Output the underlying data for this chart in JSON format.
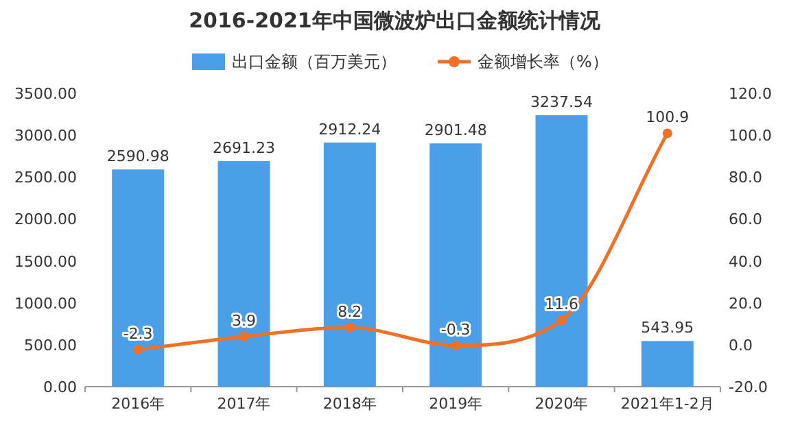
{
  "chart_data": {
    "type": "bar",
    "title": "2016-2021年中国微波炉出口金额统计情况",
    "categories": [
      "2016年",
      "2017年",
      "2018年",
      "2019年",
      "2020年",
      "2021年1-2月"
    ],
    "series": [
      {
        "name": "出口金额（百万美元）",
        "color": "#4a9fe8",
        "values": [
          2590.98,
          2691.23,
          2912.24,
          2901.48,
          3237.54,
          543.95
        ]
      },
      {
        "name": "金额增长率（%）",
        "type": "line",
        "axis": "y2",
        "color": "#f07026",
        "values": [
          -2.3,
          3.9,
          8.2,
          -0.3,
          11.6,
          100.9
        ]
      }
    ],
    "ylim": [
      0,
      3500
    ],
    "yticks": [
      {
        "value": 0,
        "label": "0.00"
      },
      {
        "value": 500,
        "label": "500.00"
      },
      {
        "value": 1000,
        "label": "1000.00"
      },
      {
        "value": 1500,
        "label": "1500.00"
      },
      {
        "value": 2000,
        "label": "2000.00"
      },
      {
        "value": 2500,
        "label": "2500.00"
      },
      {
        "value": 3000,
        "label": "3000.00"
      },
      {
        "value": 3500,
        "label": "3500.00"
      }
    ],
    "y2lim": [
      -20,
      120
    ],
    "y2ticks": [
      {
        "value": -20,
        "label": "-20.0"
      },
      {
        "value": 0,
        "label": "0.0"
      },
      {
        "value": 20,
        "label": "20.0"
      },
      {
        "value": 40,
        "label": "40.0"
      },
      {
        "value": 60,
        "label": "60.0"
      },
      {
        "value": 80,
        "label": "80.0"
      },
      {
        "value": 100,
        "label": "100.0"
      },
      {
        "value": 120,
        "label": "120.0"
      }
    ],
    "data_labels": true,
    "legend": "top",
    "marker": "circle",
    "grid": false
  }
}
